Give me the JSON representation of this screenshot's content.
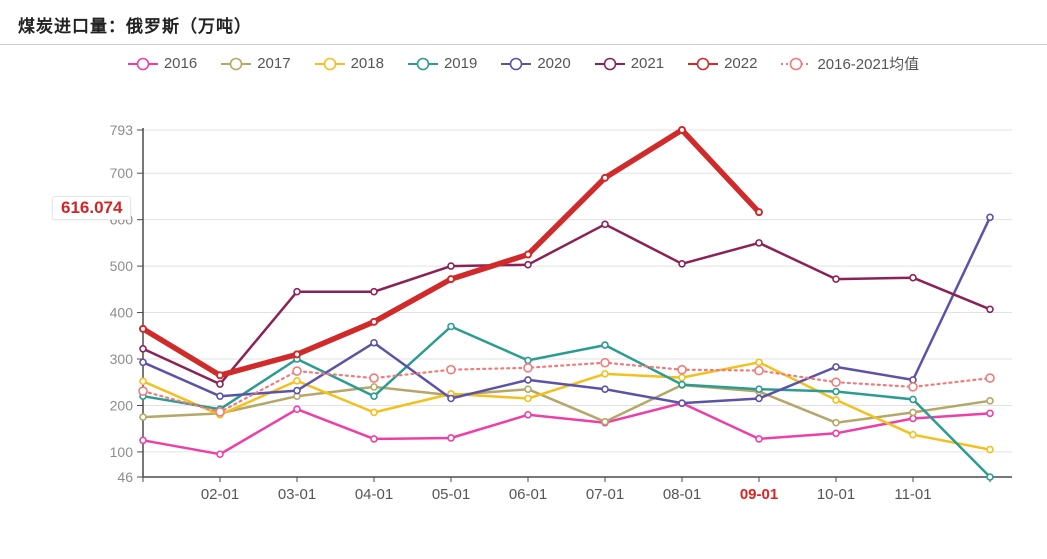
{
  "chart_data": {
    "type": "line",
    "title": "煤炭进口量：俄罗斯（万吨）",
    "unit": "万吨",
    "x_labels": [
      "",
      "02-01",
      "03-01",
      "04-01",
      "05-01",
      "06-01",
      "07-01",
      "08-01",
      "09-01",
      "10-01",
      "11-01",
      ""
    ],
    "highlighted_x_label": "09-01",
    "y_ticks": [
      46,
      100,
      200,
      300,
      400,
      500,
      600,
      700,
      793
    ],
    "ylim": [
      46,
      793
    ],
    "grid": "horizontal",
    "legend_position": "top",
    "series": [
      {
        "name": "2016",
        "color": "#ee3fa8",
        "values": [
          125,
          95,
          192,
          128,
          130,
          180,
          163,
          205,
          128,
          140,
          172,
          183
        ]
      },
      {
        "name": "2017",
        "color": "#b5a767",
        "values": [
          175,
          183,
          220,
          240,
          222,
          235,
          165,
          244,
          230,
          163,
          185,
          210
        ]
      },
      {
        "name": "2018",
        "color": "#f3c01e",
        "values": [
          252,
          180,
          253,
          185,
          225,
          215,
          268,
          260,
          293,
          212,
          137,
          105
        ]
      },
      {
        "name": "2019",
        "color": "#2a9c92",
        "values": [
          220,
          192,
          300,
          220,
          370,
          297,
          330,
          245,
          235,
          230,
          213,
          46
        ]
      },
      {
        "name": "2020",
        "color": "#5b53a7",
        "values": [
          293,
          220,
          232,
          335,
          215,
          255,
          235,
          205,
          215,
          283,
          255,
          605
        ]
      },
      {
        "name": "2021",
        "color": "#8b2256",
        "values": [
          322,
          246,
          445,
          445,
          500,
          503,
          590,
          505,
          550,
          472,
          475,
          407
        ]
      },
      {
        "name": "2022",
        "color": "#d12a2a",
        "thick": true,
        "values": [
          365,
          265,
          310,
          380,
          472,
          525,
          690,
          793,
          616.074,
          null,
          null,
          null
        ]
      },
      {
        "name": "2016-2021均值",
        "color": "#f17a7a",
        "dashed": true,
        "values": [
          231,
          186,
          274,
          259,
          277,
          281,
          292,
          277,
          275,
          250,
          240,
          259
        ]
      }
    ],
    "annotation": {
      "label": "616.074",
      "series": "2022",
      "x": "09-01",
      "value": 616.074
    },
    "style": {
      "grid_color": "#e2e2e2",
      "axis_color": "#4a4a4a",
      "y_tick_color": "#8c8c8c",
      "x_tick_color": "#555555",
      "highlight_color": "#e02222",
      "badge_text_color": "#d02626",
      "title_color": "#222222",
      "legend_text_color": "#555555"
    }
  }
}
